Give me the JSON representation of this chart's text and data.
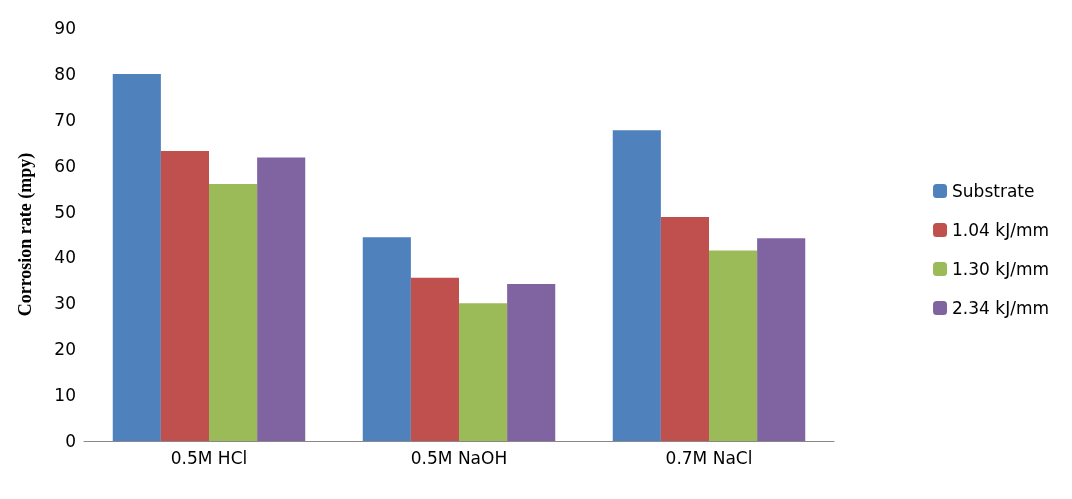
{
  "chart_data": {
    "type": "bar",
    "ylabel": "Corrosion rate (mpy)",
    "categories": [
      "0.5M HCl",
      "0.5M NaOH",
      "0.7M NaCl"
    ],
    "series": [
      {
        "name": "Substrate",
        "color": "#4f81bd",
        "values": [
          80,
          44.4,
          67.7
        ]
      },
      {
        "name": "1.04 kJ/mm",
        "color": "#c0504d",
        "values": [
          63.2,
          35.6,
          48.8
        ]
      },
      {
        "name": "1.30 kJ/mm",
        "color": "#9bbb59",
        "values": [
          56,
          30,
          41.5
        ]
      },
      {
        "name": "2.34 kJ/mm",
        "color": "#8064a2",
        "values": [
          61.8,
          34.2,
          44.2
        ]
      }
    ],
    "ylim": [
      0,
      90
    ],
    "yticks": [
      0,
      10,
      20,
      30,
      40,
      50,
      60,
      70,
      80,
      90
    ],
    "grid": false,
    "legend": "right"
  }
}
